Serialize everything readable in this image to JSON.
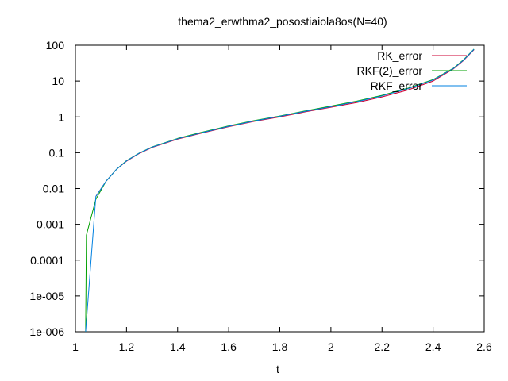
{
  "chart_data": {
    "type": "line",
    "title": "thema2_erwthma2_posostiaiola8os(N=40)",
    "xlabel": "t",
    "ylabel": "",
    "xlim": [
      1,
      2.6
    ],
    "ylim": [
      1e-06,
      100
    ],
    "yscale": "log",
    "grid": false,
    "legend_position": "top-right",
    "x_ticks": [
      "1",
      "1.2",
      "1.4",
      "1.6",
      "1.8",
      "2",
      "2.2",
      "2.4",
      "2.6"
    ],
    "y_ticks": [
      "100",
      "10",
      "1",
      "0.1",
      "0.01",
      "0.001",
      "0.0001",
      "1e-005",
      "1e-006"
    ],
    "series": [
      {
        "name": "RK_error",
        "color": "#cc0033",
        "points": [
          [
            1.08,
            0.006
          ],
          [
            1.12,
            0.016
          ],
          [
            1.16,
            0.034
          ],
          [
            1.2,
            0.058
          ],
          [
            1.25,
            0.095
          ],
          [
            1.3,
            0.14
          ],
          [
            1.4,
            0.24
          ],
          [
            1.5,
            0.36
          ],
          [
            1.6,
            0.53
          ],
          [
            1.7,
            0.75
          ],
          [
            1.8,
            1.0
          ],
          [
            1.9,
            1.38
          ],
          [
            2.0,
            1.85
          ],
          [
            2.1,
            2.5
          ],
          [
            2.2,
            3.6
          ],
          [
            2.3,
            5.6
          ],
          [
            2.4,
            10.0
          ],
          [
            2.48,
            22.0
          ],
          [
            2.52,
            38.0
          ],
          [
            2.56,
            75.0
          ]
        ]
      },
      {
        "name": "RKF(2)_error",
        "color": "#00a000",
        "points": [
          [
            1.04,
            1e-06
          ],
          [
            1.043,
            0.0005
          ],
          [
            1.08,
            0.005
          ],
          [
            1.12,
            0.016
          ],
          [
            1.16,
            0.034
          ],
          [
            1.2,
            0.06
          ],
          [
            1.25,
            0.098
          ],
          [
            1.3,
            0.145
          ],
          [
            1.4,
            0.25
          ],
          [
            1.5,
            0.38
          ],
          [
            1.6,
            0.56
          ],
          [
            1.7,
            0.79
          ],
          [
            1.8,
            1.06
          ],
          [
            1.9,
            1.47
          ],
          [
            2.0,
            2.0
          ],
          [
            2.1,
            2.75
          ],
          [
            2.2,
            4.0
          ],
          [
            2.3,
            6.3
          ],
          [
            2.4,
            11.0
          ],
          [
            2.48,
            23.0
          ],
          [
            2.52,
            40.0
          ],
          [
            2.56,
            78.0
          ]
        ]
      },
      {
        "name": "RKF_error",
        "color": "#0080e0",
        "points": [
          [
            1.04,
            1e-06
          ],
          [
            1.08,
            0.006
          ],
          [
            1.12,
            0.016
          ],
          [
            1.16,
            0.034
          ],
          [
            1.2,
            0.059
          ],
          [
            1.25,
            0.097
          ],
          [
            1.3,
            0.143
          ],
          [
            1.4,
            0.245
          ],
          [
            1.5,
            0.37
          ],
          [
            1.6,
            0.545
          ],
          [
            1.7,
            0.77
          ],
          [
            1.8,
            1.04
          ],
          [
            1.9,
            1.43
          ],
          [
            2.0,
            1.93
          ],
          [
            2.1,
            2.65
          ],
          [
            2.2,
            3.85
          ],
          [
            2.3,
            6.1
          ],
          [
            2.4,
            10.7
          ],
          [
            2.48,
            22.5
          ],
          [
            2.52,
            39.0
          ],
          [
            2.56,
            77.0
          ]
        ]
      }
    ]
  }
}
